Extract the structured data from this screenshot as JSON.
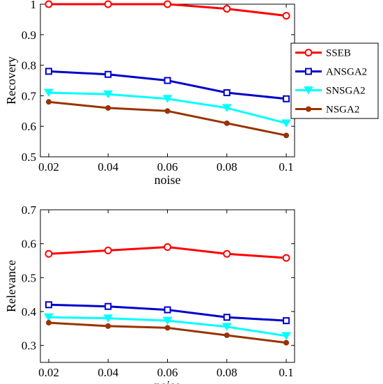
{
  "chart_data": [
    {
      "type": "line",
      "xlabel": "noise",
      "ylabel": "Recovery",
      "x": [
        0.02,
        0.04,
        0.06,
        0.08,
        0.1
      ],
      "x_tick_labels": [
        "0.02",
        "0.04",
        "0.06",
        "0.08",
        "0.1"
      ],
      "ylim": [
        0.5,
        1.0
      ],
      "y_ticks": [
        0.5,
        0.6,
        0.7,
        0.8,
        0.9,
        1.0
      ],
      "y_tick_labels": [
        "0.5",
        "0.6",
        "0.7",
        "0.8",
        "0.9",
        "1"
      ],
      "grid": false,
      "legend_position": "right",
      "series": [
        {
          "name": "SSEB",
          "color": "#ff0000",
          "marker": "circle",
          "values": [
            1.0,
            1.0,
            1.0,
            0.985,
            0.962
          ]
        },
        {
          "name": "ANSGA2",
          "color": "#0000cc",
          "marker": "square",
          "values": [
            0.78,
            0.77,
            0.75,
            0.71,
            0.69
          ]
        },
        {
          "name": "SNSGA2",
          "color": "#00ffff",
          "marker": "triangle-down",
          "values": [
            0.71,
            0.705,
            0.69,
            0.66,
            0.61
          ]
        },
        {
          "name": "NSGA2",
          "color": "#993300",
          "marker": "dot",
          "values": [
            0.68,
            0.66,
            0.65,
            0.61,
            0.57
          ]
        }
      ]
    },
    {
      "type": "line",
      "xlabel": "noise",
      "ylabel": "Relevance",
      "x": [
        0.02,
        0.04,
        0.06,
        0.08,
        0.1
      ],
      "x_tick_labels": [
        "0.02",
        "0.04",
        "0.06",
        "0.08",
        "0.1"
      ],
      "ylim": [
        0.25,
        0.7
      ],
      "y_ticks": [
        0.3,
        0.4,
        0.5,
        0.6,
        0.7
      ],
      "y_tick_labels": [
        "0.3",
        "0.4",
        "0.5",
        "0.6",
        "0.7"
      ],
      "grid": false,
      "series": [
        {
          "color": "#ff0000",
          "marker": "circle",
          "values": [
            0.57,
            0.58,
            0.59,
            0.57,
            0.558
          ]
        },
        {
          "color": "#0000cc",
          "marker": "square",
          "values": [
            0.42,
            0.415,
            0.405,
            0.383,
            0.373
          ]
        },
        {
          "color": "#00ffff",
          "marker": "triangle-down",
          "values": [
            0.383,
            0.38,
            0.373,
            0.355,
            0.328
          ]
        },
        {
          "color": "#993300",
          "marker": "dot",
          "values": [
            0.367,
            0.357,
            0.352,
            0.33,
            0.308
          ]
        }
      ]
    }
  ]
}
